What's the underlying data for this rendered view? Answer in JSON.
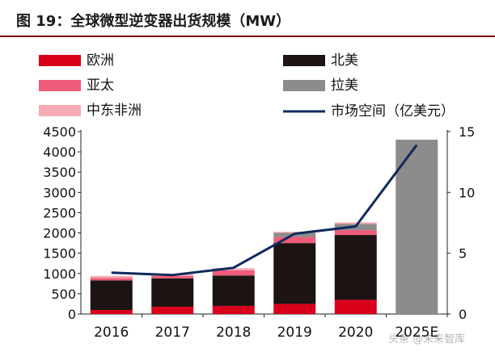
{
  "title": "图 19：全球微型逆变器出货规模（MW）",
  "watermark": "头条 @未来智库",
  "chart_data": {
    "type": "bar",
    "stacked": true,
    "categories": [
      "2016",
      "2017",
      "2018",
      "2019",
      "2020",
      "2025E"
    ],
    "series": [
      {
        "name": "欧洲",
        "color": "#d9001b",
        "values": [
          100,
          180,
          200,
          250,
          350,
          0
        ]
      },
      {
        "name": "北美",
        "color": "#1c1412",
        "values": [
          730,
          700,
          750,
          1500,
          1600,
          0
        ]
      },
      {
        "name": "亚太",
        "color": "#ef5b79",
        "values": [
          60,
          60,
          130,
          150,
          120,
          0
        ]
      },
      {
        "name": "拉美",
        "color": "#8c8c8c",
        "values": [
          0,
          0,
          0,
          100,
          150,
          4300
        ]
      },
      {
        "name": "中东非洲",
        "color": "#f5aab4",
        "values": [
          50,
          40,
          50,
          30,
          40,
          0
        ]
      }
    ],
    "line": {
      "name": "市场空间（亿美元）",
      "color": "#0f2a5c",
      "values": [
        3.4,
        3.2,
        3.8,
        6.6,
        7.2,
        13.9
      ]
    },
    "ylim": [
      0,
      4500
    ],
    "yticks": [
      0,
      500,
      1000,
      1500,
      2000,
      2500,
      3000,
      3500,
      4000,
      4500
    ],
    "y2lim": [
      0,
      15
    ],
    "y2ticks": [
      0,
      5,
      10,
      15
    ],
    "legend_position": "top"
  }
}
